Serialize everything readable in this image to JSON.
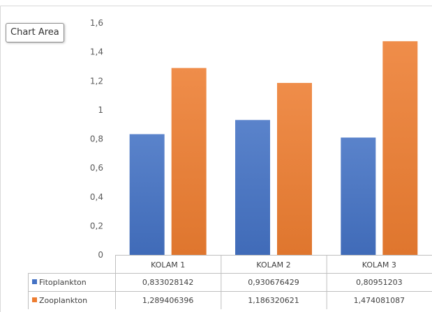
{
  "tooltip": "Chart Area",
  "chart_data": {
    "type": "bar",
    "categories": [
      "KOLAM 1",
      "KOLAM 2",
      "KOLAM 3"
    ],
    "series": [
      {
        "name": "Fitoplankton",
        "values": [
          0.833028142,
          0.930676429,
          0.80951203
        ],
        "labels": [
          "0,833028142",
          "0,930676429",
          "0,80951203"
        ],
        "color": "#4472C4"
      },
      {
        "name": "Zooplankton",
        "values": [
          1.289406396,
          1.186320621,
          1.474081087
        ],
        "labels": [
          "1,289406396",
          "1,186320621",
          "1,474081087"
        ],
        "color": "#ED7D31"
      }
    ],
    "ylim": [
      0,
      1.6
    ],
    "y_ticks": [
      0,
      0.2,
      0.4,
      0.6,
      0.8,
      1,
      1.2,
      1.4,
      1.6
    ],
    "y_tick_labels": [
      "0",
      "0,2",
      "0,4",
      "0,6",
      "0,8",
      "1",
      "1,2",
      "1,4",
      "1,6"
    ],
    "grid": false,
    "legend": "data table",
    "title": "",
    "xlabel": "",
    "ylabel": ""
  }
}
